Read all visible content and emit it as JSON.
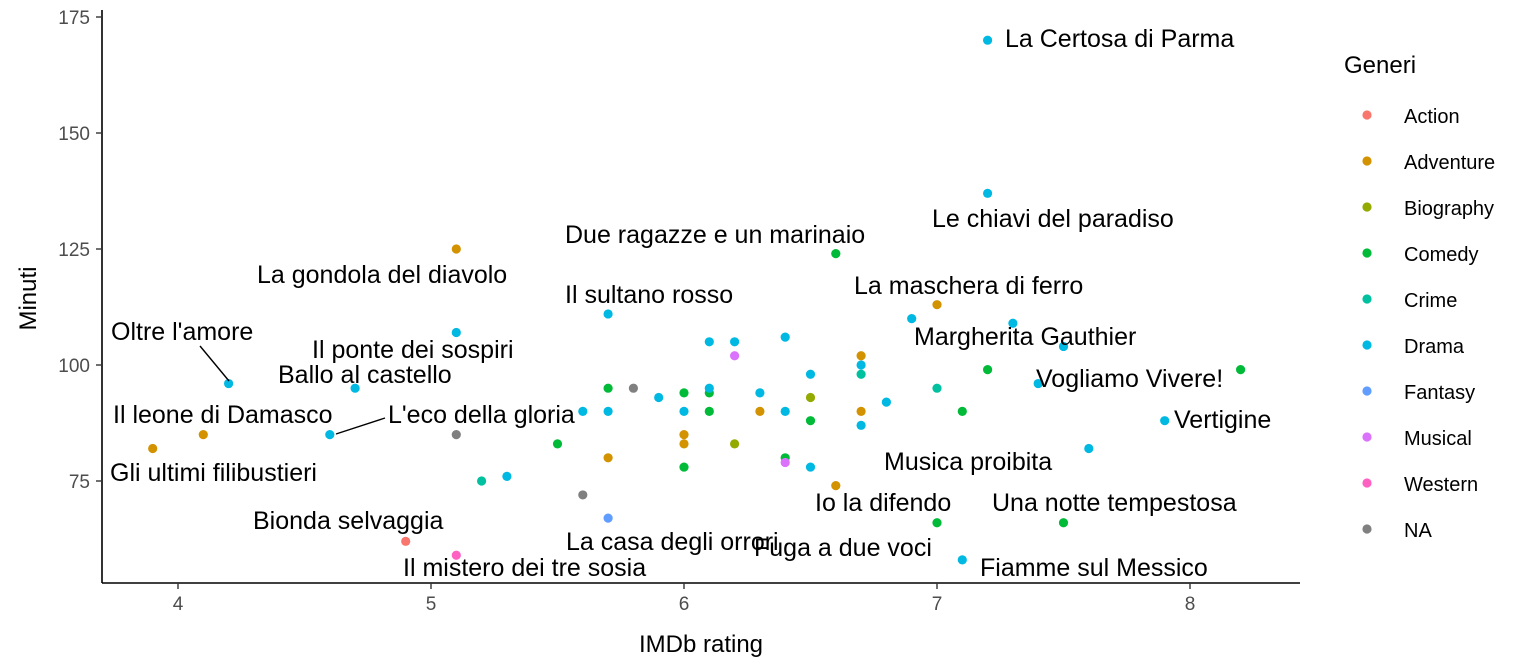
{
  "chart_data": {
    "type": "scatter",
    "title": "",
    "xlabel": "IMDb rating",
    "ylabel": "Minuti",
    "xlim": [
      3.7,
      8.42
    ],
    "ylim": [
      53,
      176
    ],
    "x_ticks": [
      4,
      5,
      6,
      7,
      8
    ],
    "y_ticks": [
      75,
      100,
      125,
      150,
      175
    ],
    "grid": false,
    "legend": {
      "title": "Generi",
      "position": "right",
      "entries": [
        {
          "name": "Action",
          "color": "#F8766D"
        },
        {
          "name": "Adventure",
          "color": "#D39200"
        },
        {
          "name": "Biography",
          "color": "#93AA00"
        },
        {
          "name": "Comedy",
          "color": "#00BA38"
        },
        {
          "name": "Crime",
          "color": "#00C19F"
        },
        {
          "name": "Drama",
          "color": "#00B9E3"
        },
        {
          "name": "Fantasy",
          "color": "#619CFF"
        },
        {
          "name": "Musical",
          "color": "#DB72FB"
        },
        {
          "name": "Western",
          "color": "#FF61C3"
        },
        {
          "name": "NA",
          "color": "#808080"
        }
      ]
    },
    "points": [
      {
        "x": 7.2,
        "y": 170,
        "genre": "Drama"
      },
      {
        "x": 7.2,
        "y": 137,
        "genre": "Drama"
      },
      {
        "x": 5.1,
        "y": 125,
        "genre": "Adventure"
      },
      {
        "x": 6.6,
        "y": 124,
        "genre": "Comedy"
      },
      {
        "x": 6.7,
        "y": 102,
        "genre": "Adventure"
      },
      {
        "x": 7.0,
        "y": 113,
        "genre": "Adventure"
      },
      {
        "x": 5.7,
        "y": 111,
        "genre": "Drama"
      },
      {
        "x": 5.1,
        "y": 107,
        "genre": "Drama"
      },
      {
        "x": 6.9,
        "y": 110,
        "genre": "Drama"
      },
      {
        "x": 7.3,
        "y": 109,
        "genre": "Drama"
      },
      {
        "x": 7.5,
        "y": 104,
        "genre": "Drama"
      },
      {
        "x": 6.1,
        "y": 105,
        "genre": "Drama"
      },
      {
        "x": 6.2,
        "y": 105,
        "genre": "Drama"
      },
      {
        "x": 6.4,
        "y": 106,
        "genre": "Drama"
      },
      {
        "x": 6.2,
        "y": 102,
        "genre": "Musical"
      },
      {
        "x": 4.2,
        "y": 96,
        "genre": "Drama"
      },
      {
        "x": 4.7,
        "y": 95,
        "genre": "Drama"
      },
      {
        "x": 4.6,
        "y": 85,
        "genre": "Drama"
      },
      {
        "x": 4.1,
        "y": 85,
        "genre": "Adventure"
      },
      {
        "x": 3.9,
        "y": 82,
        "genre": "Adventure"
      },
      {
        "x": 5.1,
        "y": 85,
        "genre": "NA"
      },
      {
        "x": 5.7,
        "y": 95,
        "genre": "Comedy"
      },
      {
        "x": 5.8,
        "y": 95,
        "genre": "NA"
      },
      {
        "x": 5.9,
        "y": 93,
        "genre": "Drama"
      },
      {
        "x": 5.6,
        "y": 90,
        "genre": "Drama"
      },
      {
        "x": 5.7,
        "y": 90,
        "genre": "Drama"
      },
      {
        "x": 6.0,
        "y": 94,
        "genre": "Comedy"
      },
      {
        "x": 6.1,
        "y": 94,
        "genre": "Comedy"
      },
      {
        "x": 6.1,
        "y": 95,
        "genre": "Drama"
      },
      {
        "x": 6.3,
        "y": 94,
        "genre": "Drama"
      },
      {
        "x": 6.5,
        "y": 93,
        "genre": "Biography"
      },
      {
        "x": 6.5,
        "y": 98,
        "genre": "Drama"
      },
      {
        "x": 6.7,
        "y": 100,
        "genre": "Drama"
      },
      {
        "x": 6.7,
        "y": 98,
        "genre": "Crime"
      },
      {
        "x": 7.0,
        "y": 95,
        "genre": "Crime"
      },
      {
        "x": 7.2,
        "y": 99,
        "genre": "Comedy"
      },
      {
        "x": 7.4,
        "y": 96,
        "genre": "Drama"
      },
      {
        "x": 8.2,
        "y": 99,
        "genre": "Comedy"
      },
      {
        "x": 7.9,
        "y": 88,
        "genre": "Drama"
      },
      {
        "x": 7.6,
        "y": 82,
        "genre": "Drama"
      },
      {
        "x": 6.0,
        "y": 90,
        "genre": "Drama"
      },
      {
        "x": 6.1,
        "y": 90,
        "genre": "Comedy"
      },
      {
        "x": 6.3,
        "y": 90,
        "genre": "Adventure"
      },
      {
        "x": 6.4,
        "y": 90,
        "genre": "Drama"
      },
      {
        "x": 6.5,
        "y": 88,
        "genre": "Comedy"
      },
      {
        "x": 6.7,
        "y": 90,
        "genre": "Adventure"
      },
      {
        "x": 6.7,
        "y": 87,
        "genre": "Drama"
      },
      {
        "x": 6.8,
        "y": 92,
        "genre": "Drama"
      },
      {
        "x": 7.1,
        "y": 90,
        "genre": "Comedy"
      },
      {
        "x": 6.0,
        "y": 85,
        "genre": "Adventure"
      },
      {
        "x": 6.0,
        "y": 83,
        "genre": "Adventure"
      },
      {
        "x": 6.2,
        "y": 83,
        "genre": "Biography"
      },
      {
        "x": 5.5,
        "y": 83,
        "genre": "Comedy"
      },
      {
        "x": 5.7,
        "y": 80,
        "genre": "Adventure"
      },
      {
        "x": 6.0,
        "y": 78,
        "genre": "Comedy"
      },
      {
        "x": 6.4,
        "y": 80,
        "genre": "Comedy"
      },
      {
        "x": 6.4,
        "y": 79,
        "genre": "Musical"
      },
      {
        "x": 6.5,
        "y": 78,
        "genre": "Drama"
      },
      {
        "x": 6.6,
        "y": 74,
        "genre": "Adventure"
      },
      {
        "x": 5.3,
        "y": 76,
        "genre": "Drama"
      },
      {
        "x": 5.2,
        "y": 75,
        "genre": "Crime"
      },
      {
        "x": 5.6,
        "y": 72,
        "genre": "NA"
      },
      {
        "x": 5.7,
        "y": 67,
        "genre": "Fantasy"
      },
      {
        "x": 7.0,
        "y": 66,
        "genre": "Comedy"
      },
      {
        "x": 7.5,
        "y": 66,
        "genre": "Comedy"
      },
      {
        "x": 4.9,
        "y": 62,
        "genre": "Action"
      },
      {
        "x": 5.1,
        "y": 59,
        "genre": "Western"
      },
      {
        "x": 7.1,
        "y": 58,
        "genre": "Drama"
      }
    ],
    "annotations": [
      {
        "text": "La Certosa di Parma",
        "x": 7.2,
        "y": 170
      },
      {
        "text": "Le chiavi del paradiso",
        "x": 7.2,
        "y": 137
      },
      {
        "text": "Due ragazze e un marinaio",
        "x": 6.6,
        "y": 124
      },
      {
        "text": "La gondola del diavolo",
        "x": 5.1,
        "y": 125
      },
      {
        "text": "La maschera di ferro",
        "x": 7.0,
        "y": 113
      },
      {
        "text": "Il sultano rosso",
        "x": 5.7,
        "y": 111
      },
      {
        "text": "Margherita Gauthier",
        "x": 7.3,
        "y": 109
      },
      {
        "text": "Oltre l'amore",
        "x": 4.2,
        "y": 96
      },
      {
        "text": "Il ponte dei sospiri",
        "x": 5.1,
        "y": 107
      },
      {
        "text": "Ballo al castello",
        "x": 4.7,
        "y": 95
      },
      {
        "text": "Vogliamo Vivere!",
        "x": 7.4,
        "y": 96
      },
      {
        "text": "Il leone di Damasco",
        "x": 4.1,
        "y": 85
      },
      {
        "text": "L'eco della gloria",
        "x": 4.6,
        "y": 85
      },
      {
        "text": "Vertigine",
        "x": 7.9,
        "y": 88
      },
      {
        "text": "Musica proibita",
        "x": 7.6,
        "y": 82
      },
      {
        "text": "Gli ultimi filibustieri",
        "x": 3.9,
        "y": 82
      },
      {
        "text": "Io la difendo",
        "x": 7.0,
        "y": 66
      },
      {
        "text": "Una notte tempestosa",
        "x": 7.5,
        "y": 66
      },
      {
        "text": "Bionda selvaggia",
        "x": 4.9,
        "y": 62
      },
      {
        "text": "La casa degli orrori",
        "x": 5.7,
        "y": 67
      },
      {
        "text": "Fuga a due voci",
        "x": 7.1,
        "y": 58
      },
      {
        "text": "Il mistero dei tre sosia",
        "x": 5.1,
        "y": 59
      },
      {
        "text": "Fiamme sul Messico",
        "x": 7.1,
        "y": 58
      }
    ]
  }
}
